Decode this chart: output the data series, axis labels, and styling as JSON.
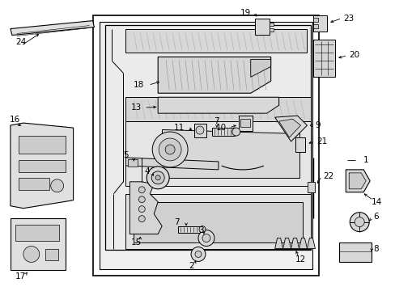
{
  "bg_color": "#ffffff",
  "line_color": "#000000",
  "fig_width": 4.89,
  "fig_height": 3.6,
  "dpi": 100,
  "label_fontsize": 7.5,
  "part_fill": "#e8e8e8",
  "part_fill2": "#d4d4d4",
  "part_fill3": "#c0c0c0",
  "part_stroke": "#000000"
}
